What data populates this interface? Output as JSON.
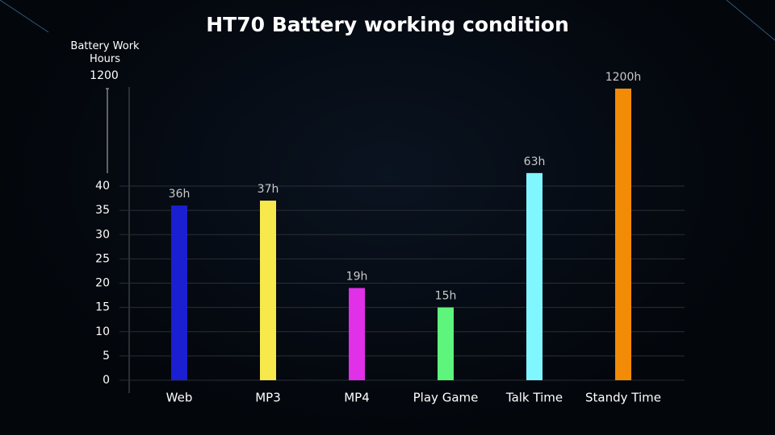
{
  "chart_data": {
    "type": "bar",
    "title": "HT70 Battery working condition",
    "ylabel": "Battery Work Hours",
    "categories": [
      "Web",
      "MP3",
      "MP4",
      "Play Game",
      "Talk Time",
      "Standy Time"
    ],
    "values": [
      36,
      37,
      19,
      15,
      63,
      1200
    ],
    "value_labels": [
      "36h",
      "37h",
      "19h",
      "15h",
      "63h",
      "1200h"
    ],
    "colors": [
      "#1a1fd2",
      "#f7e84c",
      "#e030e8",
      "#5df57b",
      "#80f6ff",
      "#f28c06"
    ],
    "ylim": [
      0,
      1200
    ],
    "ybreak": 40,
    "yticks": [
      0,
      5,
      10,
      15,
      20,
      25,
      30,
      35,
      40,
      1200
    ],
    "grid": true
  }
}
